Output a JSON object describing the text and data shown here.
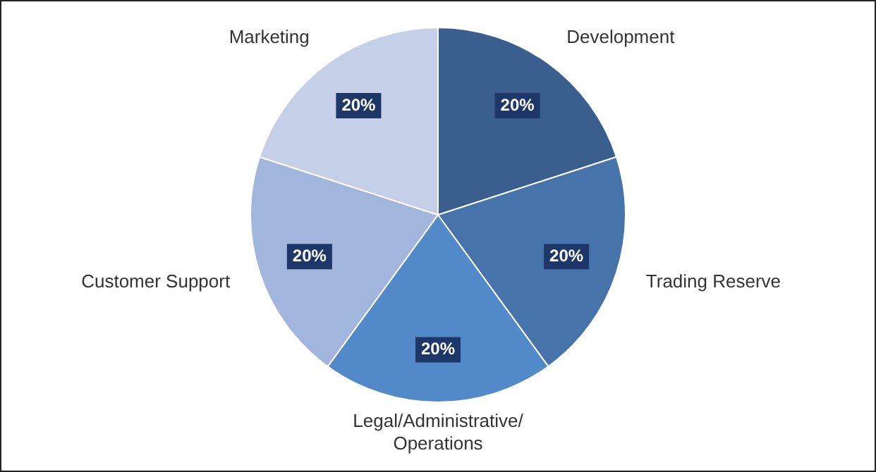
{
  "chart_data": {
    "type": "pie",
    "categories": [
      "Development",
      "Trading Reserve",
      "Legal/Administrative/Operations",
      "Customer Support",
      "Marketing"
    ],
    "values": [
      20,
      20,
      20,
      20,
      20
    ],
    "colors": [
      "#3a5f8f",
      "#4573aa",
      "#5289c9",
      "#a1b5dd",
      "#c5cfe7"
    ],
    "value_labels": [
      "20%",
      "20%",
      "20%",
      "20%",
      "20%"
    ],
    "legend": false
  }
}
